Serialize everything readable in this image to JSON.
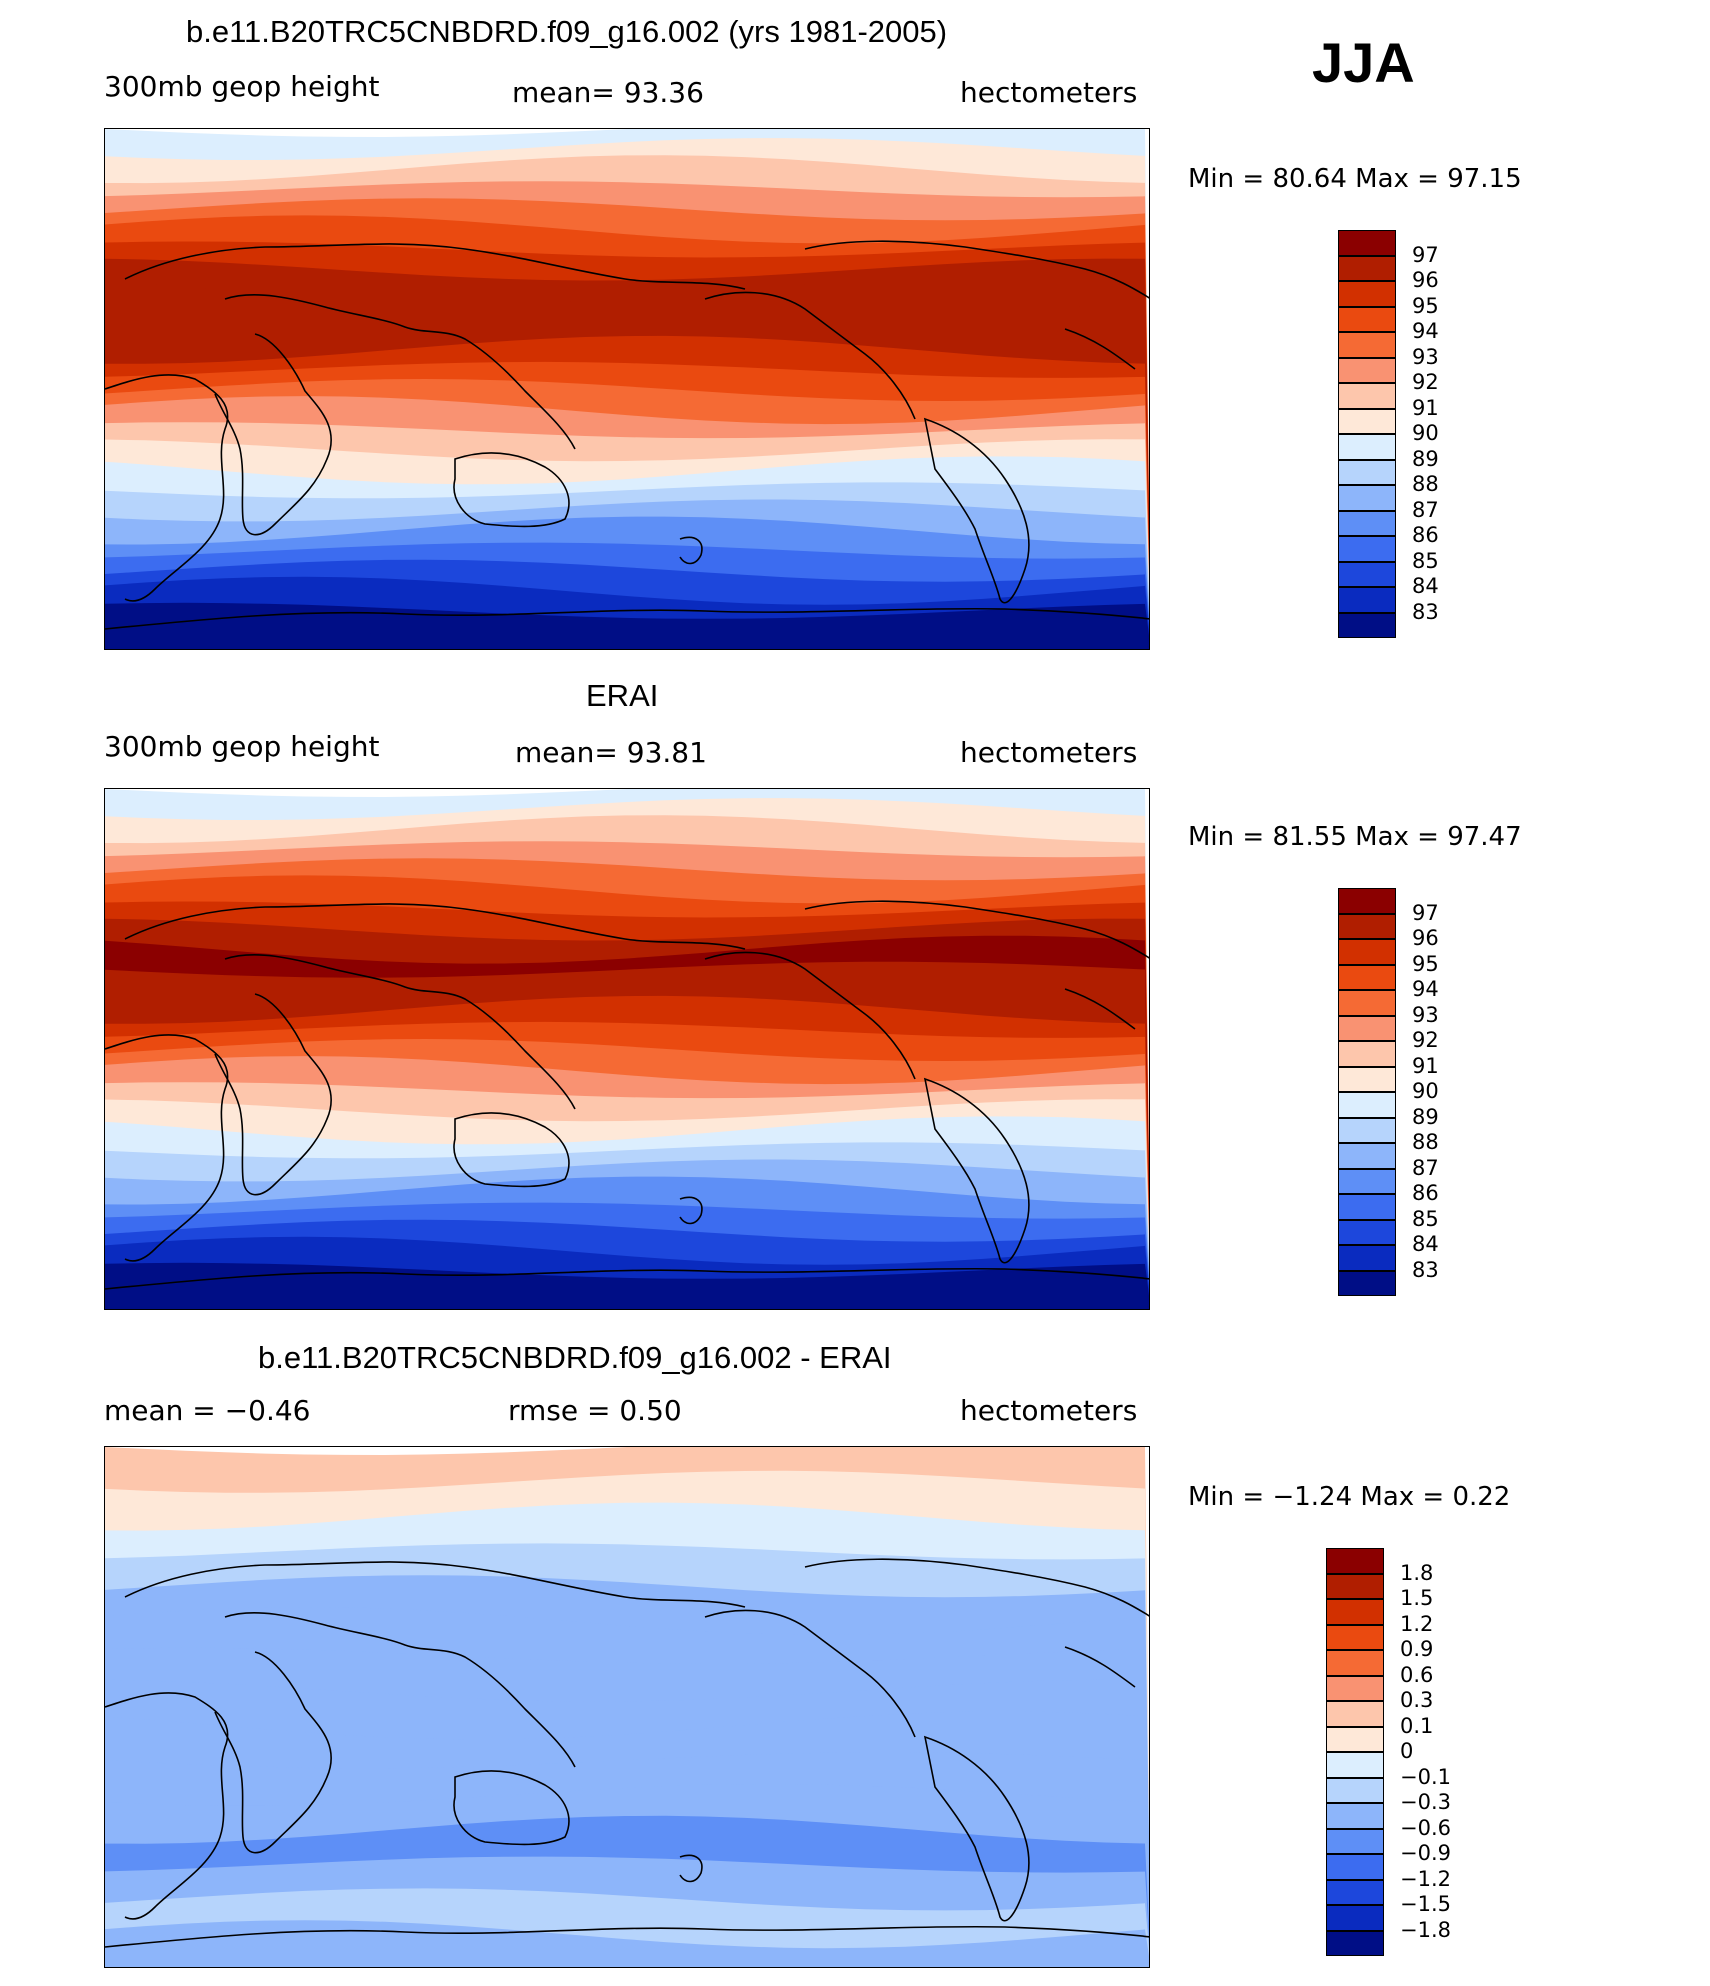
{
  "season_label": "JJA",
  "panels": [
    {
      "id": "model",
      "title": "b.e11.B20TRC5CNBDRD.f09_g16.002 (yrs 1981-2005)",
      "left_label": "300mb  geop  height",
      "center_label": "mean=   93.36",
      "units": "hectometers",
      "minmax": "Min  =    80.64  Max  =    97.15",
      "colorbar_labels": [
        "97",
        "96",
        "95",
        "94",
        "93",
        "92",
        "91",
        "90",
        "89",
        "88",
        "87",
        "86",
        "85",
        "84",
        "83"
      ],
      "colorbar_colors": [
        "#8b0000",
        "#b01e00",
        "#d23000",
        "#ea4a10",
        "#f56a34",
        "#f99272",
        "#fdc6ac",
        "#fee8d8",
        "#dceefe",
        "#b6d4fc",
        "#8db5fa",
        "#5e8ff6",
        "#3c6cf0",
        "#1d47dc",
        "#0a2bbf",
        "#000e86"
      ],
      "map_bands": [
        "#dceefe",
        "#fee8d8",
        "#fdc6ac",
        "#f99272",
        "#f56a34",
        "#ea4a10",
        "#d23000",
        "#b01e00",
        "#b01e00",
        "#b01e00",
        "#b01e00",
        "#d23000",
        "#ea4a10",
        "#f56a34",
        "#f99272",
        "#fdc6ac",
        "#fee8d8",
        "#dceefe",
        "#b6d4fc",
        "#8db5fa",
        "#5e8ff6",
        "#3c6cf0",
        "#1d47dc",
        "#0a2bbf",
        "#000e86",
        "#000e86"
      ]
    },
    {
      "id": "obs",
      "title": "ERAI",
      "left_label": "300mb  geop  height",
      "center_label": "mean=   93.81",
      "units": "hectometers",
      "minmax": "Min  =    81.55  Max  =    97.47",
      "colorbar_labels": [
        "97",
        "96",
        "95",
        "94",
        "93",
        "92",
        "91",
        "90",
        "89",
        "88",
        "87",
        "86",
        "85",
        "84",
        "83"
      ],
      "colorbar_colors": [
        "#8b0000",
        "#b01e00",
        "#d23000",
        "#ea4a10",
        "#f56a34",
        "#f99272",
        "#fdc6ac",
        "#fee8d8",
        "#dceefe",
        "#b6d4fc",
        "#8db5fa",
        "#5e8ff6",
        "#3c6cf0",
        "#1d47dc",
        "#0a2bbf",
        "#000e86"
      ],
      "map_bands": [
        "#dceefe",
        "#fee8d8",
        "#fdc6ac",
        "#f99272",
        "#f56a34",
        "#ea4a10",
        "#d23000",
        "#b01e00",
        "#8b0000",
        "#b01e00",
        "#b01e00",
        "#d23000",
        "#ea4a10",
        "#f56a34",
        "#f99272",
        "#fdc6ac",
        "#fee8d8",
        "#dceefe",
        "#b6d4fc",
        "#8db5fa",
        "#5e8ff6",
        "#3c6cf0",
        "#1d47dc",
        "#0a2bbf",
        "#000e86",
        "#000e86"
      ]
    },
    {
      "id": "diff",
      "title": "b.e11.B20TRC5CNBDRD.f09_g16.002 - ERAI",
      "left_label": "mean  =     −0.46",
      "center_label": "rmse  =     0.50",
      "units": "hectometers",
      "minmax": "Min  =   −1.24  Max  =     0.22",
      "colorbar_labels": [
        "1.8",
        "1.5",
        "1.2",
        "0.9",
        "0.6",
        "0.3",
        "0.1",
        "0",
        "−0.1",
        "−0.3",
        "−0.6",
        "−0.9",
        "−1.2",
        "−1.5",
        "−1.8"
      ],
      "colorbar_colors": [
        "#8b0000",
        "#b01e00",
        "#d23000",
        "#ea4a10",
        "#f56a34",
        "#f99272",
        "#fdc6ac",
        "#fee8d8",
        "#dceefe",
        "#b6d4fc",
        "#8db5fa",
        "#5e8ff6",
        "#3c6cf0",
        "#1d47dc",
        "#0a2bbf",
        "#000e86"
      ],
      "map_bands": [
        "#fdc6ac",
        "#fee8d8",
        "#dceefe",
        "#b6d4fc",
        "#8db5fa",
        "#8db5fa",
        "#8db5fa",
        "#8db5fa",
        "#8db5fa",
        "#8db5fa",
        "#8db5fa",
        "#5e8ff6",
        "#8db5fa",
        "#b6d4fc",
        "#8db5fa"
      ]
    }
  ]
}
